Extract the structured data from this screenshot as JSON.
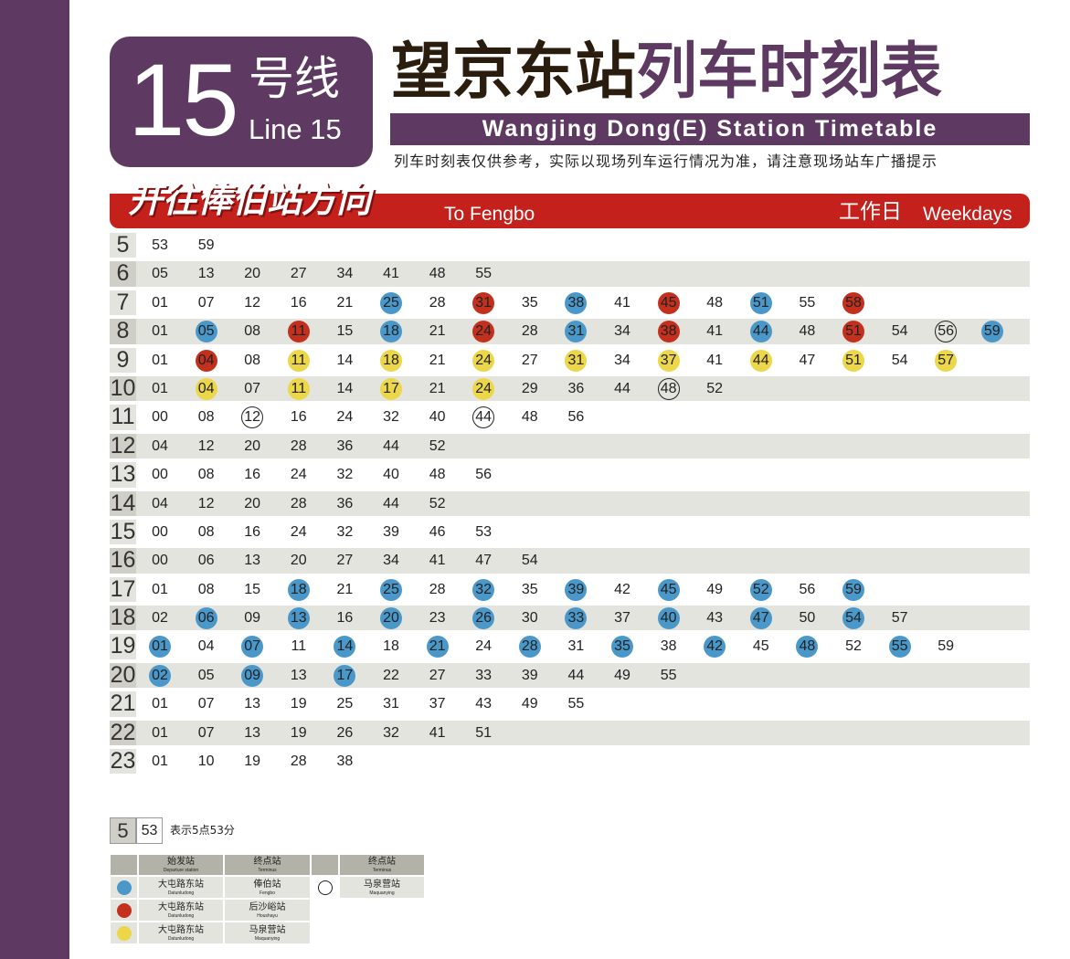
{
  "header": {
    "line_number": "15",
    "line_zh": "号线",
    "line_en": "Line 15",
    "title_station_zh": "望京东站",
    "title_timetable_zh": "列车时刻表",
    "title_en": "Wangjing Dong(E) Station Timetable",
    "notice": "列车时刻表仅供参考，实际以现场列车运行情况为准，请注意现场站车广播提示"
  },
  "direction": {
    "zh": "开往俸伯站方向",
    "en": "To Fengbo",
    "day_zh": "工作日",
    "day_en": "Weekdays"
  },
  "colors": {
    "purple": "#5e3a63",
    "red_bar": "#c4201c",
    "blue_marker": "#4a98c9",
    "red_marker": "#c3311e",
    "yellow_marker": "#ecd64a"
  },
  "timetable": [
    {
      "hour": "5",
      "times": [
        {
          "m": "53"
        },
        {
          "m": "59"
        }
      ]
    },
    {
      "hour": "6",
      "times": [
        {
          "m": "05"
        },
        {
          "m": "13"
        },
        {
          "m": "20"
        },
        {
          "m": "27"
        },
        {
          "m": "34"
        },
        {
          "m": "41"
        },
        {
          "m": "48"
        },
        {
          "m": "55"
        }
      ]
    },
    {
      "hour": "7",
      "times": [
        {
          "m": "01"
        },
        {
          "m": "07"
        },
        {
          "m": "12"
        },
        {
          "m": "16"
        },
        {
          "m": "21"
        },
        {
          "m": "25",
          "mark": "blue"
        },
        {
          "m": "28"
        },
        {
          "m": "31",
          "mark": "red"
        },
        {
          "m": "35"
        },
        {
          "m": "38",
          "mark": "blue"
        },
        {
          "m": "41"
        },
        {
          "m": "45",
          "mark": "red"
        },
        {
          "m": "48"
        },
        {
          "m": "51",
          "mark": "blue"
        },
        {
          "m": "55"
        },
        {
          "m": "58",
          "mark": "red"
        }
      ]
    },
    {
      "hour": "8",
      "times": [
        {
          "m": "01"
        },
        {
          "m": "05",
          "mark": "blue"
        },
        {
          "m": "08"
        },
        {
          "m": "11",
          "mark": "red"
        },
        {
          "m": "15"
        },
        {
          "m": "18",
          "mark": "blue"
        },
        {
          "m": "21"
        },
        {
          "m": "24",
          "mark": "red"
        },
        {
          "m": "28"
        },
        {
          "m": "31",
          "mark": "blue"
        },
        {
          "m": "34"
        },
        {
          "m": "38",
          "mark": "red"
        },
        {
          "m": "41"
        },
        {
          "m": "44",
          "mark": "blue"
        },
        {
          "m": "48"
        },
        {
          "m": "51",
          "mark": "red"
        },
        {
          "m": "54"
        },
        {
          "m": "56",
          "mark": "ring"
        },
        {
          "m": "59",
          "mark": "blue"
        }
      ]
    },
    {
      "hour": "9",
      "times": [
        {
          "m": "01"
        },
        {
          "m": "04",
          "mark": "red"
        },
        {
          "m": "08"
        },
        {
          "m": "11",
          "mark": "yellow"
        },
        {
          "m": "14"
        },
        {
          "m": "18",
          "mark": "yellow"
        },
        {
          "m": "21"
        },
        {
          "m": "24",
          "mark": "yellow"
        },
        {
          "m": "27"
        },
        {
          "m": "31",
          "mark": "yellow"
        },
        {
          "m": "34"
        },
        {
          "m": "37",
          "mark": "yellow"
        },
        {
          "m": "41"
        },
        {
          "m": "44",
          "mark": "yellow"
        },
        {
          "m": "47"
        },
        {
          "m": "51",
          "mark": "yellow"
        },
        {
          "m": "54"
        },
        {
          "m": "57",
          "mark": "yellow"
        }
      ]
    },
    {
      "hour": "10",
      "times": [
        {
          "m": "01"
        },
        {
          "m": "04",
          "mark": "yellow"
        },
        {
          "m": "07"
        },
        {
          "m": "11",
          "mark": "yellow"
        },
        {
          "m": "14"
        },
        {
          "m": "17",
          "mark": "yellow"
        },
        {
          "m": "21"
        },
        {
          "m": "24",
          "mark": "yellow"
        },
        {
          "m": "29"
        },
        {
          "m": "36"
        },
        {
          "m": "44"
        },
        {
          "m": "48",
          "mark": "ring"
        },
        {
          "m": "52"
        }
      ]
    },
    {
      "hour": "11",
      "times": [
        {
          "m": "00"
        },
        {
          "m": "08"
        },
        {
          "m": "12",
          "mark": "ring"
        },
        {
          "m": "16"
        },
        {
          "m": "24"
        },
        {
          "m": "32"
        },
        {
          "m": "40"
        },
        {
          "m": "44",
          "mark": "ring"
        },
        {
          "m": "48"
        },
        {
          "m": "56"
        }
      ]
    },
    {
      "hour": "12",
      "times": [
        {
          "m": "04"
        },
        {
          "m": "12"
        },
        {
          "m": "20"
        },
        {
          "m": "28"
        },
        {
          "m": "36"
        },
        {
          "m": "44"
        },
        {
          "m": "52"
        }
      ]
    },
    {
      "hour": "13",
      "times": [
        {
          "m": "00"
        },
        {
          "m": "08"
        },
        {
          "m": "16"
        },
        {
          "m": "24"
        },
        {
          "m": "32"
        },
        {
          "m": "40"
        },
        {
          "m": "48"
        },
        {
          "m": "56"
        }
      ]
    },
    {
      "hour": "14",
      "times": [
        {
          "m": "04"
        },
        {
          "m": "12"
        },
        {
          "m": "20"
        },
        {
          "m": "28"
        },
        {
          "m": "36"
        },
        {
          "m": "44"
        },
        {
          "m": "52"
        }
      ]
    },
    {
      "hour": "15",
      "times": [
        {
          "m": "00"
        },
        {
          "m": "08"
        },
        {
          "m": "16"
        },
        {
          "m": "24"
        },
        {
          "m": "32"
        },
        {
          "m": "39"
        },
        {
          "m": "46"
        },
        {
          "m": "53"
        }
      ]
    },
    {
      "hour": "16",
      "times": [
        {
          "m": "00"
        },
        {
          "m": "06"
        },
        {
          "m": "13"
        },
        {
          "m": "20"
        },
        {
          "m": "27"
        },
        {
          "m": "34"
        },
        {
          "m": "41"
        },
        {
          "m": "47"
        },
        {
          "m": "54"
        }
      ]
    },
    {
      "hour": "17",
      "times": [
        {
          "m": "01"
        },
        {
          "m": "08"
        },
        {
          "m": "15"
        },
        {
          "m": "18",
          "mark": "blue"
        },
        {
          "m": "21"
        },
        {
          "m": "25",
          "mark": "blue"
        },
        {
          "m": "28"
        },
        {
          "m": "32",
          "mark": "blue"
        },
        {
          "m": "35"
        },
        {
          "m": "39",
          "mark": "blue"
        },
        {
          "m": "42"
        },
        {
          "m": "45",
          "mark": "blue"
        },
        {
          "m": "49"
        },
        {
          "m": "52",
          "mark": "blue"
        },
        {
          "m": "56"
        },
        {
          "m": "59",
          "mark": "blue"
        }
      ]
    },
    {
      "hour": "18",
      "times": [
        {
          "m": "02"
        },
        {
          "m": "06",
          "mark": "blue"
        },
        {
          "m": "09"
        },
        {
          "m": "13",
          "mark": "blue"
        },
        {
          "m": "16"
        },
        {
          "m": "20",
          "mark": "blue"
        },
        {
          "m": "23"
        },
        {
          "m": "26",
          "mark": "blue"
        },
        {
          "m": "30"
        },
        {
          "m": "33",
          "mark": "blue"
        },
        {
          "m": "37"
        },
        {
          "m": "40",
          "mark": "blue"
        },
        {
          "m": "43"
        },
        {
          "m": "47",
          "mark": "blue"
        },
        {
          "m": "50"
        },
        {
          "m": "54",
          "mark": "blue"
        },
        {
          "m": "57"
        }
      ]
    },
    {
      "hour": "19",
      "times": [
        {
          "m": "01",
          "mark": "blue"
        },
        {
          "m": "04"
        },
        {
          "m": "07",
          "mark": "blue"
        },
        {
          "m": "11"
        },
        {
          "m": "14",
          "mark": "blue"
        },
        {
          "m": "18"
        },
        {
          "m": "21",
          "mark": "blue"
        },
        {
          "m": "24"
        },
        {
          "m": "28",
          "mark": "blue"
        },
        {
          "m": "31"
        },
        {
          "m": "35",
          "mark": "blue"
        },
        {
          "m": "38"
        },
        {
          "m": "42",
          "mark": "blue"
        },
        {
          "m": "45"
        },
        {
          "m": "48",
          "mark": "blue"
        },
        {
          "m": "52"
        },
        {
          "m": "55",
          "mark": "blue"
        },
        {
          "m": "59"
        }
      ]
    },
    {
      "hour": "20",
      "times": [
        {
          "m": "02",
          "mark": "blue"
        },
        {
          "m": "05"
        },
        {
          "m": "09",
          "mark": "blue"
        },
        {
          "m": "13"
        },
        {
          "m": "17",
          "mark": "blue"
        },
        {
          "m": "22"
        },
        {
          "m": "27"
        },
        {
          "m": "33"
        },
        {
          "m": "39"
        },
        {
          "m": "44"
        },
        {
          "m": "49"
        },
        {
          "m": "55"
        }
      ]
    },
    {
      "hour": "21",
      "times": [
        {
          "m": "01"
        },
        {
          "m": "07"
        },
        {
          "m": "13"
        },
        {
          "m": "19"
        },
        {
          "m": "25"
        },
        {
          "m": "31"
        },
        {
          "m": "37"
        },
        {
          "m": "43"
        },
        {
          "m": "49"
        },
        {
          "m": "55"
        }
      ]
    },
    {
      "hour": "22",
      "times": [
        {
          "m": "01"
        },
        {
          "m": "07"
        },
        {
          "m": "13"
        },
        {
          "m": "19"
        },
        {
          "m": "26"
        },
        {
          "m": "32"
        },
        {
          "m": "41"
        },
        {
          "m": "51"
        }
      ]
    },
    {
      "hour": "23",
      "times": [
        {
          "m": "01"
        },
        {
          "m": "10"
        },
        {
          "m": "19"
        },
        {
          "m": "28"
        },
        {
          "m": "38"
        }
      ]
    }
  ],
  "legend": {
    "example_hour": "5",
    "example_minute": "53",
    "example_text": "表示5点53分",
    "hdr_departure_zh": "始发站",
    "hdr_departure_en": "Departure station",
    "hdr_terminus_zh": "终点站",
    "hdr_terminus_en": "Terminus",
    "blue_departure_zh": "大屯路东站",
    "blue_departure_en": "Datunludong",
    "blue_terminus_zh": "俸伯站",
    "blue_terminus_en": "Fengbo",
    "red_departure_zh": "大屯路东站",
    "red_departure_en": "Datunludong",
    "red_terminus_zh": "后沙峪站",
    "red_terminus_en": "Houshayu",
    "yellow_departure_zh": "大屯路东站",
    "yellow_departure_en": "Datunludong",
    "yellow_terminus_zh": "马泉营站",
    "yellow_terminus_en": "Maquanying",
    "ring_terminus_zh": "马泉营站",
    "ring_terminus_en": "Maquanying"
  }
}
